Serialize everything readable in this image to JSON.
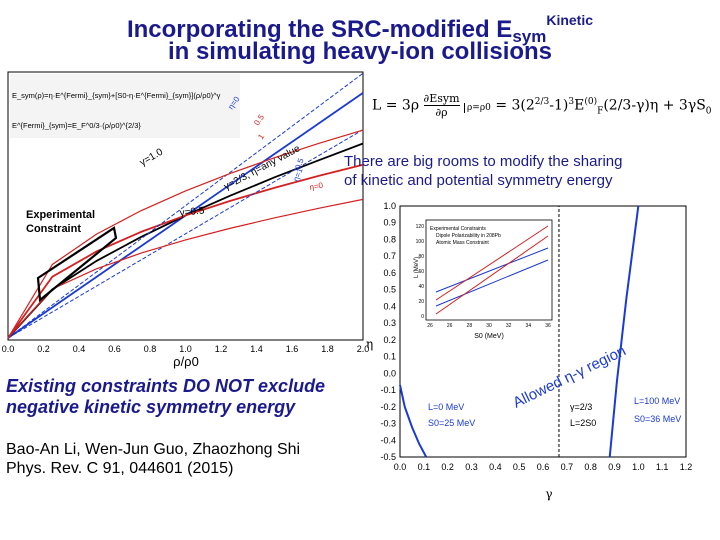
{
  "title": {
    "line1_prefix": "Incorporating the SRC-modified E",
    "line1_sub": "sym",
    "line1_sup": "Kinetic",
    "line2": "in simulating heavy-ion collisions"
  },
  "formula_right": {
    "lhs": "L = 3ρ",
    "frac_num": "∂Esym",
    "frac_den": "∂ρ",
    "eval": "ρ=ρ0",
    "rhs": "= 3(2",
    "rhs2": "-1)",
    "rhs3": "E",
    "rhs4": "(2/3-γ)η + 3γS"
  },
  "rooms_text": {
    "line1": "There are big rooms to modify the sharing",
    "line2": "of kinetic and potential symmetry energy"
  },
  "constraints_text": {
    "line1": "Existing constraints DO NOT exclude",
    "line2": "negative kinetic symmetry energy"
  },
  "reference": {
    "line1": "Bao-An Li, Wen-Jun Guo, Zhaozhong Shi",
    "line2": "Phys. Rev. C 91, 044601 (2015)"
  },
  "colors": {
    "title": "#1a1a8c",
    "red_curve": "#d42020",
    "blue_curve": "#1a3ad4",
    "black_curve": "#000000"
  },
  "chart_data": [
    {
      "type": "line",
      "title": "",
      "xlabel": "ρ/ρ0",
      "ylabel": "",
      "x_ticks": [
        "0.0",
        "0.2",
        "0.4",
        "0.6",
        "0.8",
        "1.0",
        "1.2",
        "1.4",
        "1.6",
        "1.8",
        "2.0"
      ],
      "xlim": [
        0,
        2.0
      ],
      "legend_lines": [
        "E_sym(ρ)=η·E^{Fermi}_{sym}+[S0-η·E^{Fermi}_{sym}](ρ/ρ0)^γ",
        "E^{Fermi}_{sym}=E_F^0/3·(ρ/ρ0)^{2/3}"
      ],
      "annotations": [
        "γ=1.0",
        "γ=2/3, η=any value",
        "γ=0.5",
        "η=0",
        "0.5",
        "1",
        "η=0",
        "0.5",
        "η=1",
        "Experimental",
        "Constraint"
      ],
      "series": [
        {
          "name": "γ=1.0",
          "color": "#1a3ad4",
          "x": [
            0.0,
            0.25,
            0.5,
            0.75,
            1.0,
            1.25,
            1.5,
            1.75,
            2.0
          ],
          "y_rel": [
            0.0,
            0.25,
            0.5,
            0.75,
            1.0,
            1.25,
            1.5,
            1.75,
            2.0
          ]
        },
        {
          "name": "γ=2/3",
          "color": "#000000",
          "x": [
            0.0,
            0.25,
            0.5,
            0.75,
            1.0,
            1.25,
            1.5,
            1.75,
            2.0
          ],
          "y_rel": [
            0.0,
            0.397,
            0.63,
            0.825,
            1.0,
            1.16,
            1.31,
            1.45,
            1.587
          ]
        },
        {
          "name": "γ=0.5",
          "color": "#d42020",
          "x": [
            0.0,
            0.25,
            0.5,
            0.75,
            1.0,
            1.25,
            1.5,
            1.75,
            2.0
          ],
          "y_rel": [
            0.0,
            0.5,
            0.707,
            0.866,
            1.0,
            1.118,
            1.225,
            1.323,
            1.414
          ]
        }
      ]
    },
    {
      "type": "line",
      "title": "",
      "xlabel": "γ",
      "ylabel": "η",
      "xlim": [
        0.0,
        1.2
      ],
      "ylim": [
        -0.5,
        1.0
      ],
      "x_ticks": [
        "0.0",
        "0.1",
        "0.2",
        "0.3",
        "0.4",
        "0.5",
        "0.6",
        "0.7",
        "0.8",
        "0.9",
        "1.0",
        "1.1",
        "1.2"
      ],
      "y_ticks": [
        "1.0",
        "0.9",
        "0.8",
        "0.7",
        "0.6",
        "0.5",
        "0.4",
        "0.3",
        "0.2",
        "0.1",
        "0.0",
        "-0.1",
        "-0.2",
        "-0.3",
        "-0.4",
        "-0.5"
      ],
      "annotations": [
        "Allowed η-γ region",
        "L=0 MeV",
        "S0=25 MeV",
        "γ=2/3",
        "L=2S0",
        "L=100 MeV",
        "S0=36 MeV"
      ],
      "series": [
        {
          "name": "L=0 MeV, S0=25 MeV",
          "color": "#1a3ad4",
          "x": [
            0.0,
            0.02,
            0.05,
            0.08,
            0.11
          ],
          "y": [
            -0.07,
            -0.2,
            -0.32,
            -0.42,
            -0.5
          ]
        },
        {
          "name": "L=100 MeV, S0=36 MeV",
          "color": "#1a3ad4",
          "x": [
            0.88,
            0.91,
            0.95,
            1.0
          ],
          "y": [
            -0.5,
            -0.05,
            0.45,
            1.0
          ]
        },
        {
          "name": "γ=2/3",
          "color": "#000000",
          "x": [
            0.667,
            0.667
          ],
          "y": [
            -0.5,
            1.0
          ]
        }
      ]
    },
    {
      "type": "line",
      "title": "",
      "xlabel": "S0 (MeV)",
      "ylabel": "L (MeV)",
      "x_ticks": [
        "26",
        "26",
        "28",
        "30",
        "32",
        "34",
        "36"
      ],
      "y_ticks": [
        "120",
        "100",
        "80",
        "60",
        "40",
        "20",
        "0"
      ],
      "legend": [
        "Experimental Constraints",
        "Dipole Polarizability in 208Pb",
        "Atomic Mass Constraint"
      ]
    }
  ]
}
